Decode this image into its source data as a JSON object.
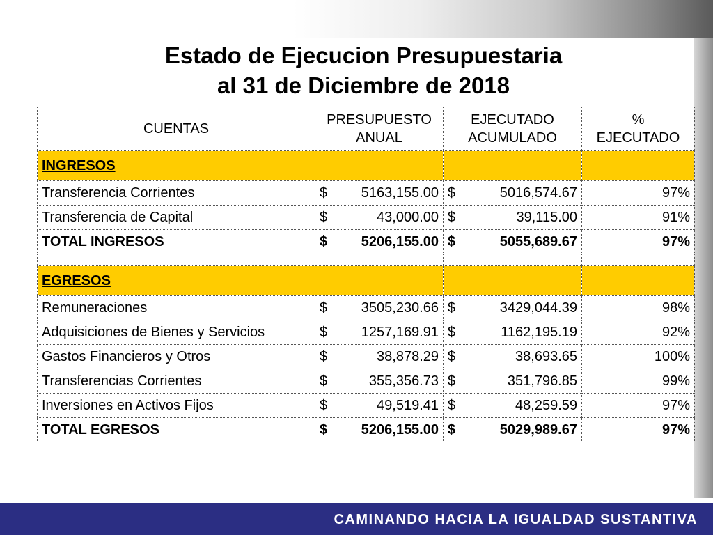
{
  "title": {
    "line1": "Estado de Ejecucion Presupuestaria",
    "line2": "al 31 de Diciembre de 2018"
  },
  "table": {
    "headers": {
      "cuentas": "CUENTAS",
      "presupuesto_l1": "PRESUPUESTO",
      "presupuesto_l2": "ANUAL",
      "ejecutado_l1": "EJECUTADO",
      "ejecutado_l2": "ACUMULADO",
      "pct_l1": "%",
      "pct_l2": "EJECUTADO"
    },
    "currency_symbol": "$",
    "ingresos": {
      "label": "INGRESOS",
      "rows": [
        {
          "cuenta": "Transferencia Corrientes",
          "presupuesto": "5163,155.00",
          "ejecutado": "5016,574.67",
          "pct": "97%"
        },
        {
          "cuenta": "Transferencia de Capital",
          "presupuesto": "43,000.00",
          "ejecutado": "39,115.00",
          "pct": "91%"
        }
      ],
      "total": {
        "cuenta": "TOTAL INGRESOS",
        "presupuesto": "5206,155.00",
        "ejecutado": "5055,689.67",
        "pct": "97%"
      }
    },
    "egresos": {
      "label": "EGRESOS",
      "rows": [
        {
          "cuenta": "Remuneraciones",
          "presupuesto": "3505,230.66",
          "ejecutado": "3429,044.39",
          "pct": "98%"
        },
        {
          "cuenta": "Adquisiciones de Bienes y Servicios",
          "presupuesto": "1257,169.91",
          "ejecutado": "1162,195.19",
          "pct": "92%"
        },
        {
          "cuenta": "Gastos Financieros y Otros",
          "presupuesto": "38,878.29",
          "ejecutado": "38,693.65",
          "pct": "100%"
        },
        {
          "cuenta": "Transferencias Corrientes",
          "presupuesto": "355,356.73",
          "ejecutado": "351,796.85",
          "pct": "99%"
        },
        {
          "cuenta": "Inversiones en Activos Fijos",
          "presupuesto": "49,519.41",
          "ejecutado": "48,259.59",
          "pct": "97%"
        }
      ],
      "total": {
        "cuenta": "TOTAL EGRESOS",
        "presupuesto": "5206,155.00",
        "ejecutado": "5029,989.67",
        "pct": "97%"
      }
    }
  },
  "footer": {
    "slogan": "CAMINANDO HACIA LA IGUALDAD SUSTANTIVA",
    "bar_color": "#2b2e83"
  },
  "colors": {
    "section_highlight": "#ffcc00"
  }
}
